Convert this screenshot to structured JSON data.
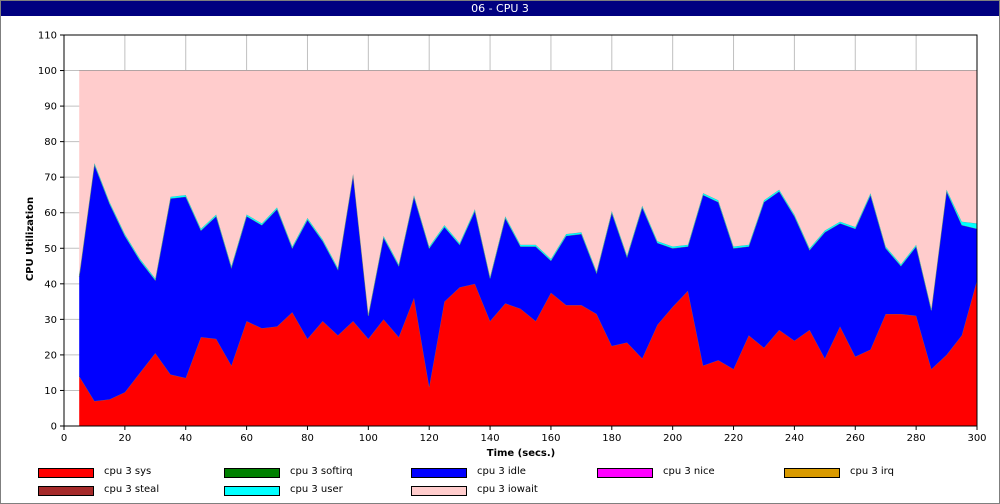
{
  "window": {
    "title": "06 - CPU 3"
  },
  "chart_data": {
    "type": "area",
    "stacked": true,
    "xlabel": "Time (secs.)",
    "ylabel": "CPU Utilization",
    "xlim": [
      0,
      300
    ],
    "ylim": [
      0,
      110
    ],
    "xticks": [
      0,
      20,
      40,
      60,
      80,
      100,
      120,
      140,
      160,
      180,
      200,
      220,
      240,
      260,
      280,
      300
    ],
    "yticks": [
      0,
      10,
      20,
      30,
      40,
      50,
      60,
      70,
      80,
      90,
      100,
      110
    ],
    "grid": true,
    "legend_position": "bottom",
    "x": [
      5,
      10,
      15,
      20,
      25,
      30,
      35,
      40,
      45,
      50,
      55,
      60,
      65,
      70,
      75,
      80,
      85,
      90,
      95,
      100,
      105,
      110,
      115,
      120,
      125,
      130,
      135,
      140,
      145,
      150,
      155,
      160,
      165,
      170,
      175,
      180,
      185,
      190,
      195,
      200,
      205,
      210,
      215,
      220,
      225,
      230,
      235,
      240,
      245,
      250,
      255,
      260,
      265,
      270,
      275,
      280,
      285,
      290,
      295,
      300
    ],
    "series": [
      {
        "name": "cpu 3 sys",
        "color": "#ff0000",
        "values": [
          14,
          7,
          7.5,
          9.5,
          15,
          20.5,
          14.5,
          13.5,
          25,
          24.5,
          17,
          29.5,
          27.5,
          28,
          32,
          24.5,
          29.5,
          25.5,
          29.5,
          24.5,
          30,
          25,
          36,
          11,
          35,
          39,
          40,
          29.5,
          34.5,
          33,
          29.5,
          37.5,
          34,
          34,
          31.5,
          22.5,
          23.5,
          19,
          28.5,
          33.5,
          38,
          17,
          18.5,
          16,
          25.5,
          22,
          27,
          24,
          27,
          19,
          28,
          19.5,
          21.5,
          31.5,
          31.5,
          31,
          16,
          20,
          25.5,
          41
        ]
      },
      {
        "name": "cpu 3 softirq",
        "color": "#008000",
        "values": [
          0,
          0,
          0,
          0,
          0,
          0,
          0,
          0,
          0,
          0,
          0,
          0,
          0,
          0,
          0,
          0,
          0,
          0,
          0,
          0,
          0,
          0,
          0,
          0,
          0,
          0,
          0,
          0,
          0,
          0,
          0,
          0,
          0,
          0,
          0,
          0,
          0,
          0,
          0,
          0,
          0,
          0,
          0,
          0,
          0,
          0,
          0,
          0,
          0,
          0,
          0,
          0,
          0,
          0,
          0,
          0,
          0,
          0,
          0,
          0
        ]
      },
      {
        "name": "cpu 3 idle",
        "color": "#0000ff",
        "values": [
          28,
          66.5,
          55,
          44,
          31.5,
          20.5,
          49.5,
          51,
          30,
          34.5,
          27.5,
          29.5,
          29,
          33,
          18,
          33.5,
          22.5,
          18.5,
          41,
          6.5,
          23,
          20,
          28.5,
          39,
          21,
          12,
          20.5,
          12,
          24,
          17.5,
          21,
          9,
          19.5,
          20,
          11.5,
          37.5,
          24,
          42.5,
          23,
          16.5,
          12.5,
          48,
          44.5,
          34,
          25,
          41,
          39,
          35,
          22.5,
          35.5,
          29,
          36,
          43.5,
          18.5,
          13.5,
          19.5,
          16.5,
          46,
          31,
          14.5
        ]
      },
      {
        "name": "cpu 3 nice",
        "color": "#ff00ff",
        "values": [
          0,
          0,
          0,
          0,
          0,
          0,
          0,
          0,
          0,
          0,
          0,
          0,
          0,
          0,
          0,
          0,
          0,
          0,
          0,
          0,
          0,
          0,
          0,
          0,
          0,
          0,
          0,
          0,
          0,
          0,
          0,
          0,
          0,
          0,
          0,
          0,
          0,
          0,
          0,
          0,
          0,
          0,
          0,
          0,
          0,
          0,
          0,
          0,
          0,
          0,
          0,
          0,
          0,
          0,
          0,
          0,
          0,
          0,
          0,
          0
        ]
      },
      {
        "name": "cpu 3 irq",
        "color": "#d99a00",
        "values": [
          0,
          0,
          0,
          0,
          0,
          0,
          0,
          0,
          0,
          0,
          0,
          0,
          0,
          0,
          0,
          0,
          0,
          0,
          0,
          0,
          0,
          0,
          0,
          0,
          0,
          0,
          0,
          0,
          0,
          0,
          0,
          0,
          0,
          0,
          0,
          0,
          0,
          0,
          0,
          0,
          0,
          0,
          0,
          0,
          0,
          0,
          0,
          0,
          0,
          0,
          0,
          0,
          0,
          0,
          0,
          0,
          0,
          0,
          0,
          0
        ]
      },
      {
        "name": "cpu 3 steal",
        "color": "#a52a2a",
        "values": [
          0,
          0,
          0,
          0,
          0,
          0,
          0,
          0,
          0,
          0,
          0,
          0,
          0,
          0,
          0,
          0,
          0,
          0,
          0,
          0,
          0,
          0,
          0,
          0,
          0,
          0,
          0,
          0,
          0,
          0,
          0,
          0,
          0,
          0,
          0,
          0,
          0,
          0,
          0,
          0,
          0,
          0,
          0,
          0,
          0,
          0,
          0,
          0,
          0,
          0,
          0,
          0,
          0,
          0,
          0,
          0,
          0,
          0,
          0,
          0
        ]
      },
      {
        "name": "cpu 3 user",
        "color": "#00ffff",
        "values": [
          0.5,
          0.5,
          0.5,
          0.5,
          0.5,
          0.5,
          0.5,
          0.5,
          0.5,
          0.5,
          0.5,
          0.5,
          0.5,
          0.5,
          0.5,
          0.5,
          0.5,
          0.5,
          0.5,
          0.5,
          0.5,
          0.5,
          0.5,
          0.5,
          0.5,
          0.5,
          0.5,
          0.5,
          0.5,
          0.5,
          0.5,
          0.5,
          0.5,
          0.5,
          0.5,
          0.5,
          0.5,
          0.5,
          0.5,
          0.5,
          0.5,
          0.5,
          0.5,
          0.5,
          0.5,
          0.5,
          0.5,
          0.5,
          0.5,
          0.5,
          0.5,
          0.5,
          0.5,
          0.5,
          0.5,
          0.5,
          0.5,
          0.5,
          1,
          1.5
        ]
      },
      {
        "name": "cpu 3 iowait",
        "color": "#ffcccc",
        "values": [
          57.5,
          26,
          37,
          46,
          53,
          58.5,
          35.5,
          35,
          44.5,
          40.5,
          55,
          40.5,
          43,
          38.5,
          49.5,
          41.5,
          47.5,
          55.5,
          29,
          68.5,
          46.5,
          54.5,
          35,
          49.5,
          43.5,
          48.5,
          39,
          58,
          41,
          49,
          49,
          53,
          46,
          45.5,
          56.5,
          39.5,
          52,
          38,
          48,
          49.5,
          49,
          34.5,
          36.5,
          49.5,
          49,
          36.5,
          33.5,
          40.5,
          50,
          45,
          42.5,
          44,
          34.5,
          49.5,
          54.5,
          49,
          67,
          33.5,
          42.5,
          43
        ]
      }
    ]
  }
}
